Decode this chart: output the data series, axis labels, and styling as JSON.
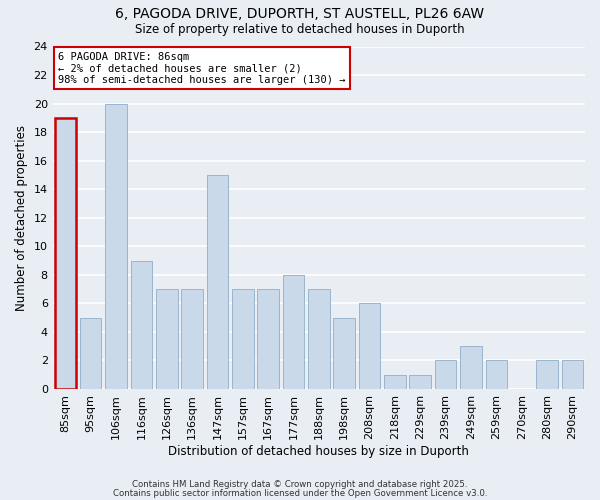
{
  "title_line1": "6, PAGODA DRIVE, DUPORTH, ST AUSTELL, PL26 6AW",
  "title_line2": "Size of property relative to detached houses in Duporth",
  "xlabel": "Distribution of detached houses by size in Duporth",
  "ylabel": "Number of detached properties",
  "bar_labels": [
    "85sqm",
    "95sqm",
    "106sqm",
    "116sqm",
    "126sqm",
    "136sqm",
    "147sqm",
    "157sqm",
    "167sqm",
    "177sqm",
    "188sqm",
    "198sqm",
    "208sqm",
    "218sqm",
    "229sqm",
    "239sqm",
    "249sqm",
    "259sqm",
    "270sqm",
    "280sqm",
    "290sqm"
  ],
  "bar_values": [
    19,
    5,
    20,
    9,
    7,
    7,
    15,
    7,
    7,
    8,
    7,
    5,
    6,
    1,
    1,
    2,
    3,
    2,
    0,
    2,
    2
  ],
  "bar_color": "#c9d9ea",
  "highlight_edge_color": "#cc0000",
  "normal_edge_color": "#9ab5cc",
  "ylim": [
    0,
    24
  ],
  "yticks": [
    0,
    2,
    4,
    6,
    8,
    10,
    12,
    14,
    16,
    18,
    20,
    22,
    24
  ],
  "annotation_line1": "6 PAGODA DRIVE: 86sqm",
  "annotation_line2": "← 2% of detached houses are smaller (2)",
  "annotation_line3": "98% of semi-detached houses are larger (130) →",
  "background_color": "#e8eef4",
  "grid_color": "#ffffff",
  "footer_line1": "Contains HM Land Registry data © Crown copyright and database right 2025.",
  "footer_line2": "Contains public sector information licensed under the Open Government Licence v3.0."
}
